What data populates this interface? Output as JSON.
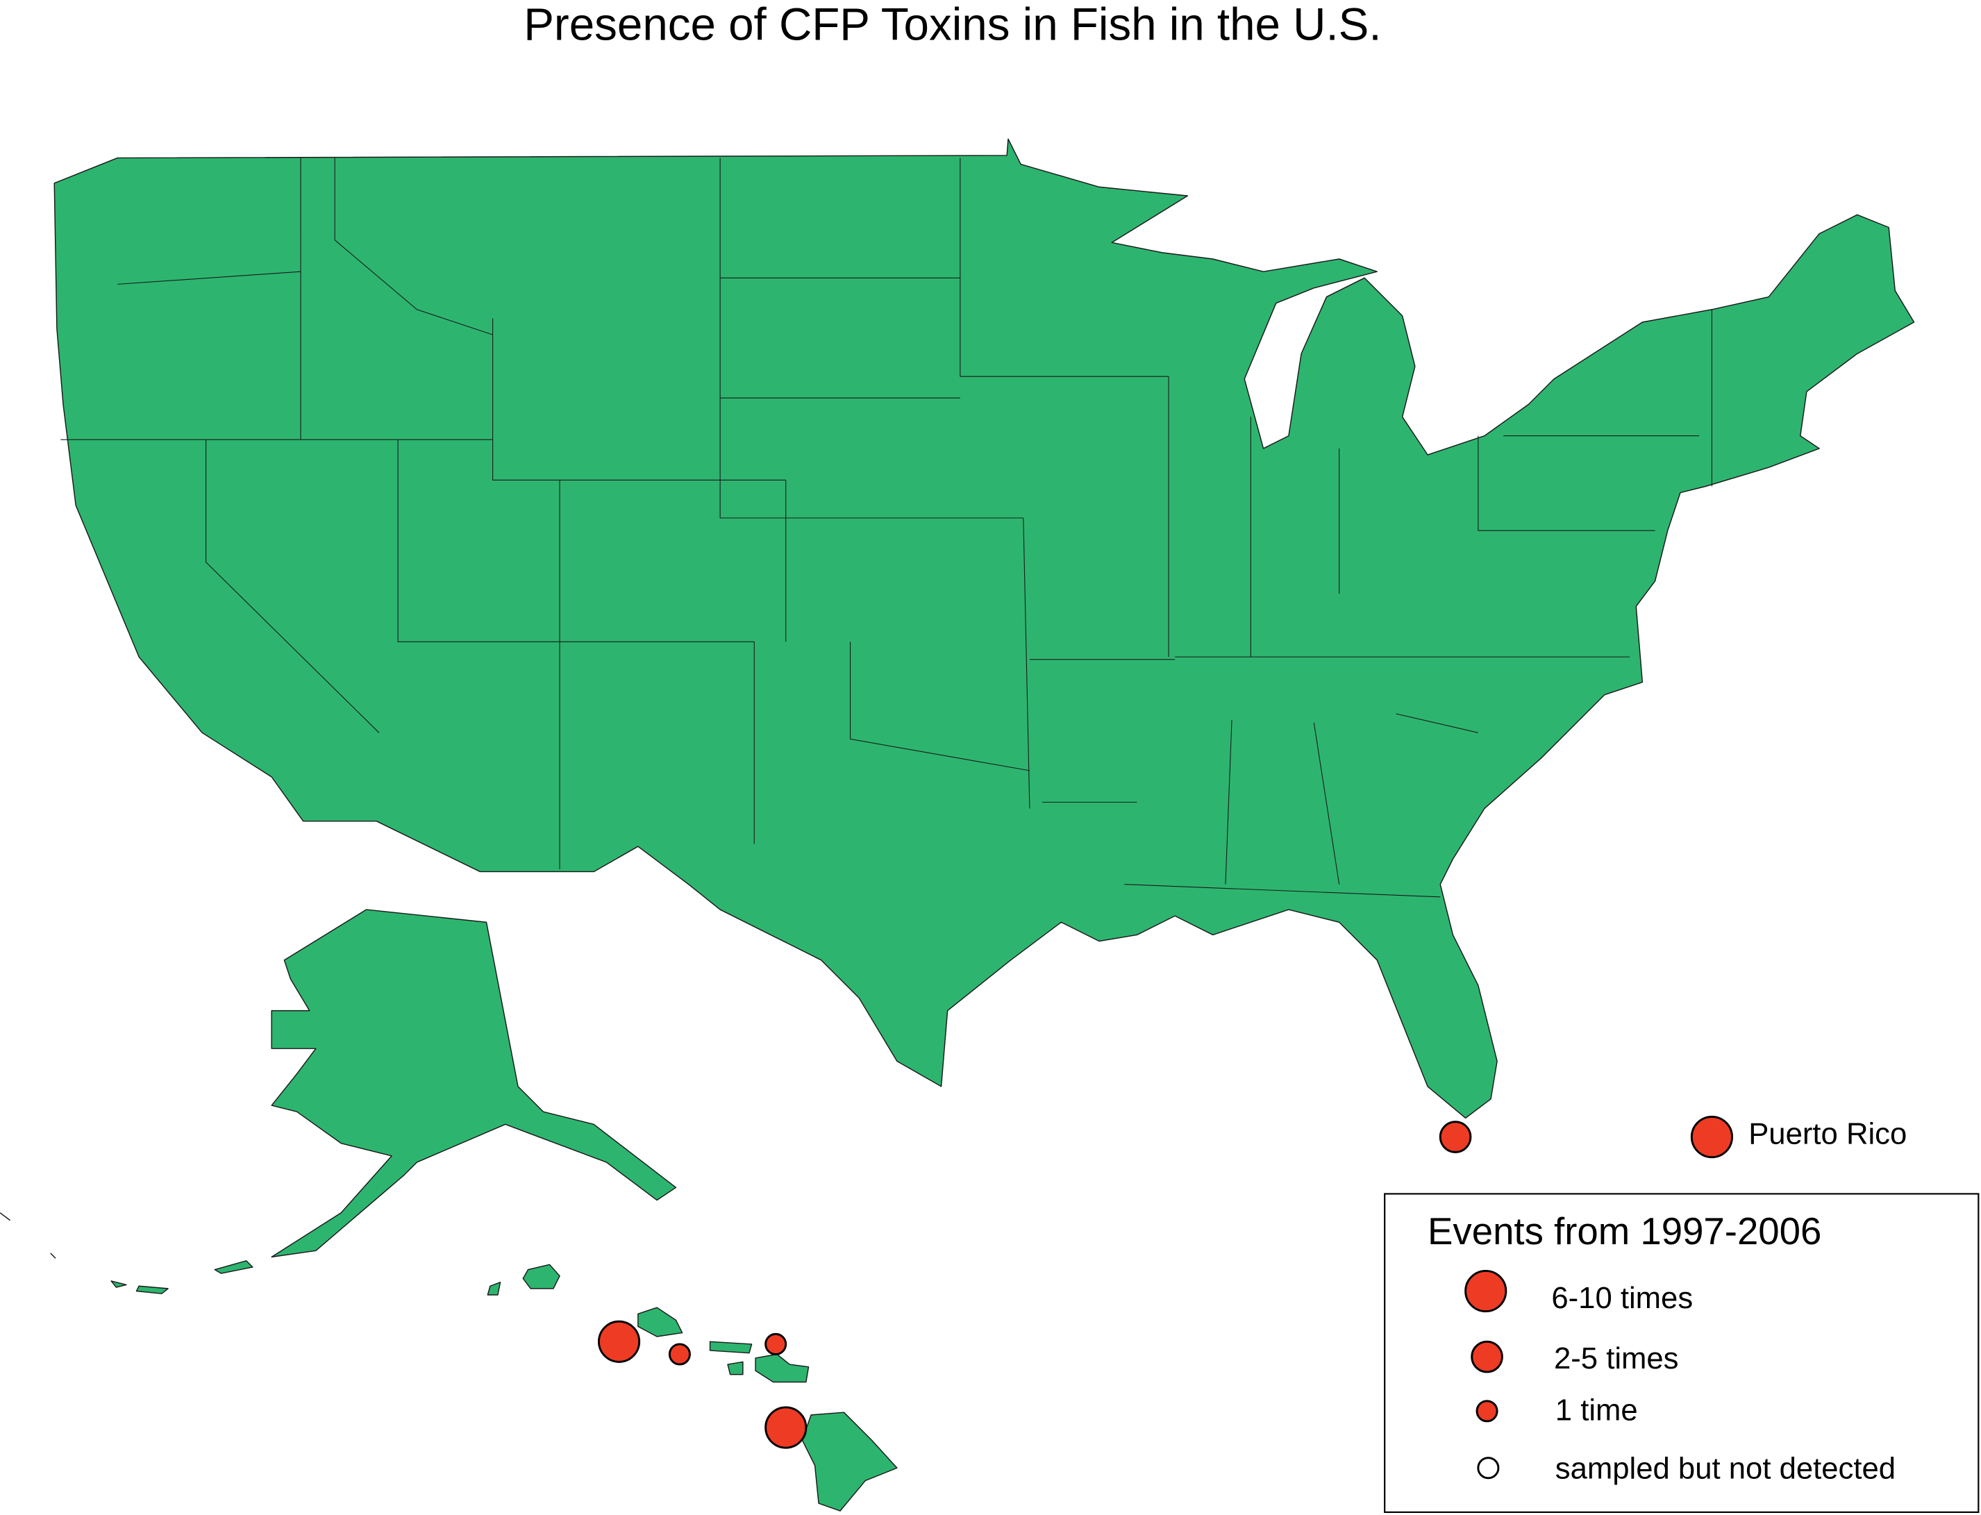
{
  "title": "Presence of CFP Toxins in Fish in the U.S.",
  "puerto_rico": "Puerto Rico",
  "legend": {
    "title": "Events from 1997-2006",
    "items": [
      {
        "label": "6-10 times"
      },
      {
        "label": "2-5 times"
      },
      {
        "label": "1 time"
      },
      {
        "label": "sampled but not detected"
      }
    ]
  }
}
